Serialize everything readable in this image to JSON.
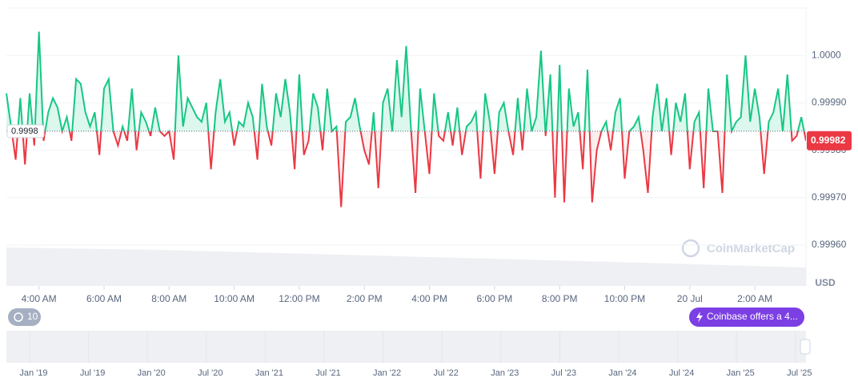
{
  "chart_data": {
    "type": "line",
    "values": [
      0.99992,
      0.99985,
      0.99978,
      0.99991,
      0.99977,
      0.99992,
      0.99981,
      1.00005,
      0.99982,
      0.99988,
      0.99991,
      0.99989,
      0.99984,
      0.99987,
      0.99982,
      0.99995,
      0.99994,
      0.99988,
      0.99985,
      0.99988,
      0.99979,
      0.99993,
      0.99995,
      0.99984,
      0.99981,
      0.99985,
      0.99982,
      0.99993,
      0.9998,
      0.99988,
      0.99986,
      0.99983,
      0.99989,
      0.99984,
      0.99983,
      0.99984,
      0.99978,
      1.0,
      0.99985,
      0.99991,
      0.99989,
      0.99987,
      0.99986,
      0.9999,
      0.99976,
      0.99988,
      0.99995,
      0.99986,
      0.99988,
      0.99981,
      0.99986,
      0.99985,
      0.9999,
      0.99987,
      0.99978,
      0.99994,
      0.99985,
      0.99981,
      0.99992,
      0.99987,
      0.99995,
      0.99988,
      0.99976,
      0.99996,
      0.99979,
      0.99982,
      0.99992,
      0.99989,
      0.9998,
      0.99993,
      0.99984,
      0.99985,
      0.99968,
      0.99986,
      0.99987,
      0.99991,
      0.99985,
      0.9998,
      0.99977,
      0.99988,
      0.99972,
      0.9999,
      0.99993,
      0.99984,
      0.99999,
      0.99987,
      1.00002,
      0.99985,
      0.99971,
      0.99993,
      0.99984,
      0.99975,
      0.99992,
      0.99983,
      0.99982,
      0.99988,
      0.99981,
      0.99989,
      0.99979,
      0.99985,
      0.99986,
      0.99988,
      0.99974,
      0.99992,
      0.99986,
      0.99975,
      0.99988,
      0.9999,
      0.99984,
      0.99979,
      0.99991,
      0.9998,
      0.99993,
      0.99984,
      0.99987,
      1.00001,
      0.99983,
      0.99996,
      0.9997,
      0.99998,
      0.99969,
      0.99993,
      0.99985,
      0.99988,
      0.99976,
      0.99997,
      0.99969,
      0.9998,
      0.99984,
      0.99986,
      0.9998,
      0.99988,
      0.99991,
      0.99974,
      0.99984,
      0.99985,
      0.99987,
      0.9998,
      0.99971,
      0.99987,
      0.99994,
      0.99984,
      0.99991,
      0.99979,
      0.9999,
      0.99986,
      0.99992,
      0.99976,
      0.99986,
      0.99988,
      0.99972,
      0.99993,
      0.99984,
      0.99984,
      0.99971,
      0.99996,
      0.99984,
      0.99986,
      0.99987,
      1.0,
      0.99986,
      0.99993,
      0.99987,
      0.99975,
      0.99986,
      0.99988,
      0.99993,
      0.99984,
      0.99996,
      0.99982,
      0.99983,
      0.99987,
      0.99982
    ],
    "up_color": "#16c784",
    "down_color": "#ea3943",
    "baseline": {
      "value": 0.99984,
      "label": "0.9998"
    },
    "current_price": 0.99982,
    "xlim": [
      0,
      172
    ],
    "xticks": [
      {
        "value": 7,
        "label": "4:00 AM"
      },
      {
        "value": 21,
        "label": "6:00 AM"
      },
      {
        "value": 35,
        "label": "8:00 AM"
      },
      {
        "value": 49,
        "label": "10:00 AM"
      },
      {
        "value": 63,
        "label": "12:00 PM"
      },
      {
        "value": 77,
        "label": "2:00 PM"
      },
      {
        "value": 91,
        "label": "4:00 PM"
      },
      {
        "value": 105,
        "label": "6:00 PM"
      },
      {
        "value": 119,
        "label": "8:00 PM"
      },
      {
        "value": 133,
        "label": "10:00 PM"
      },
      {
        "value": 147,
        "label": "20 Jul"
      },
      {
        "value": 161,
        "label": "2:00 AM"
      }
    ],
    "ylim": [
      0.9996,
      1.0001
    ],
    "yticks": [
      {
        "value": 0.9996,
        "label": "0.99960"
      },
      {
        "value": 0.9997,
        "label": "0.99970"
      },
      {
        "value": 0.9998,
        "label": "0.99980"
      },
      {
        "value": 0.9999,
        "label": "0.99990"
      },
      {
        "value": 1,
        "label": "1.0000"
      }
    ],
    "y_unit": "USD",
    "grid": true,
    "watermark": "CoinMarketCap",
    "history_badge": "10",
    "promo": "Coinbase offers a 4...",
    "navigator_labels": [
      "Jan '19",
      "Jul '19",
      "Jan '20",
      "Jul '20",
      "Jan '21",
      "Jul '21",
      "Jan '22",
      "Jul '22",
      "Jan '23",
      "Jul '23",
      "Jan '24",
      "Jul '24",
      "Jan '25",
      "Jul '25"
    ]
  }
}
